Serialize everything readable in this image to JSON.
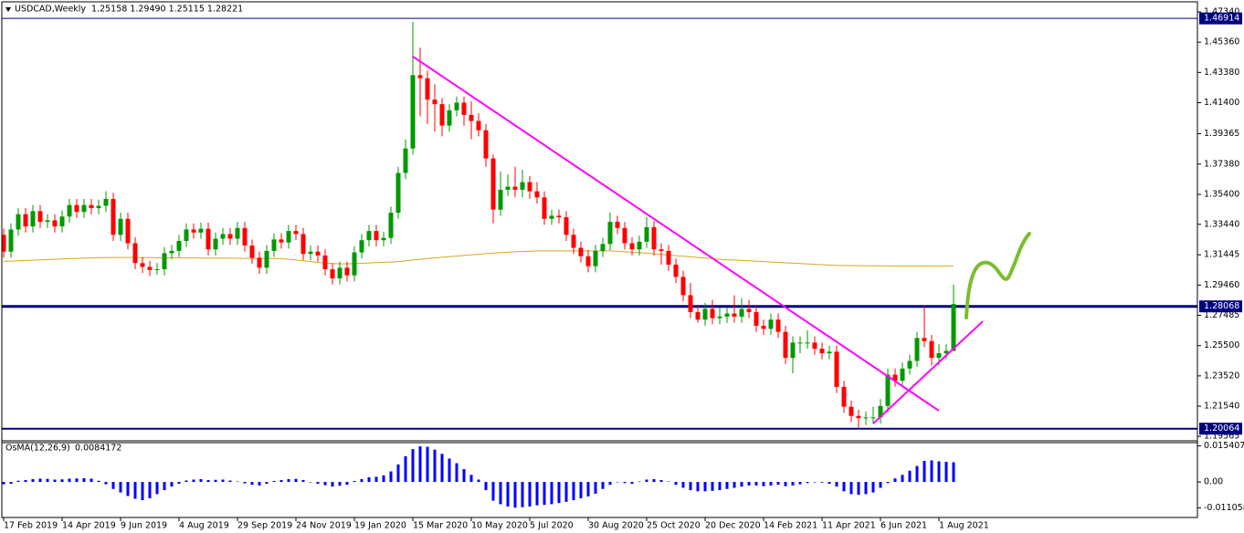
{
  "chart_data": {
    "type": "candlestick",
    "title": "USDCAD,Weekly",
    "ohlc_text": "1.25158 1.29490 1.25115 1.28221",
    "categories": [
      "17 Feb 2019",
      null,
      null,
      null,
      null,
      null,
      null,
      null,
      "14 Apr 2019",
      null,
      null,
      null,
      null,
      null,
      null,
      null,
      "9 Jun 2019",
      null,
      null,
      null,
      null,
      null,
      null,
      null,
      "4 Aug 2019",
      null,
      null,
      null,
      null,
      null,
      null,
      null,
      "29 Sep 2019",
      null,
      null,
      null,
      null,
      null,
      null,
      null,
      "24 Nov 2019",
      null,
      null,
      null,
      null,
      null,
      null,
      null,
      "19 Jan 2020",
      null,
      null,
      null,
      null,
      null,
      null,
      null,
      "15 Mar 2020",
      null,
      null,
      null,
      null,
      null,
      null,
      null,
      "10 May 2020",
      null,
      null,
      null,
      null,
      null,
      null,
      null,
      "5 Jul 2020",
      null,
      null,
      null,
      null,
      null,
      null,
      null,
      "30 Aug 2020",
      null,
      null,
      null,
      null,
      null,
      null,
      null,
      "25 Oct 2020",
      null,
      null,
      null,
      null,
      null,
      null,
      null,
      "20 Dec 2020",
      null,
      null,
      null,
      null,
      null,
      null,
      null,
      "14 Feb 2021",
      null,
      null,
      null,
      null,
      null,
      null,
      null,
      "11 Apr 2021",
      null,
      null,
      null,
      null,
      null,
      null,
      null,
      "6 Jun 2021",
      null,
      null,
      null,
      null,
      null,
      null,
      null,
      "1 Aug 2021",
      null,
      null
    ],
    "open": [
      1.3275,
      1.3165,
      1.331,
      1.341,
      1.333,
      1.343,
      1.336,
      1.337,
      1.333,
      1.3395,
      1.347,
      1.3425,
      1.347,
      1.345,
      1.3465,
      1.351,
      1.3275,
      1.338,
      1.322,
      1.309,
      1.3065,
      1.3045,
      1.305,
      1.3155,
      1.317,
      1.3235,
      1.331,
      1.329,
      1.3315,
      1.318,
      1.325,
      1.328,
      1.325,
      1.332,
      1.3205,
      1.3125,
      1.306,
      1.317,
      1.3245,
      1.3225,
      1.33,
      1.328,
      1.315,
      1.3165,
      1.314,
      1.305,
      1.299,
      1.306,
      1.301,
      1.316,
      1.324,
      1.33,
      1.324,
      1.3255,
      1.342,
      1.368,
      1.384,
      1.432,
      1.43,
      1.416,
      1.413,
      1.399,
      1.409,
      1.414,
      1.406,
      1.402,
      1.396,
      1.3775,
      1.344,
      1.357,
      1.359,
      1.357,
      1.362,
      1.356,
      1.352,
      1.338,
      1.34,
      1.339,
      1.3275,
      1.319,
      1.3135,
      1.307,
      1.317,
      1.3215,
      1.336,
      1.332,
      1.322,
      1.318,
      1.323,
      1.3325,
      1.318,
      1.317,
      1.308,
      1.3,
      1.288,
      1.277,
      1.272,
      1.279,
      1.273,
      1.274,
      1.276,
      1.274,
      1.279,
      1.277,
      1.268,
      1.266,
      1.272,
      1.264,
      1.247,
      1.257,
      1.257,
      1.257,
      1.253,
      1.25,
      1.251,
      1.228,
      1.215,
      1.209,
      1.2075,
      1.208,
      1.208,
      1.2155,
      1.236,
      1.232,
      1.24,
      1.245,
      1.26,
      1.258,
      1.247,
      1.25,
      1.25158
    ],
    "high": [
      1.3315,
      1.335,
      1.345,
      1.345,
      1.347,
      1.347,
      1.341,
      1.341,
      1.3435,
      1.351,
      1.351,
      1.351,
      1.351,
      1.3505,
      1.356,
      1.355,
      1.342,
      1.342,
      1.326,
      1.313,
      1.3105,
      1.309,
      1.3195,
      1.321,
      1.3275,
      1.335,
      1.335,
      1.3355,
      1.3355,
      1.329,
      1.332,
      1.332,
      1.336,
      1.336,
      1.3245,
      1.3165,
      1.321,
      1.3285,
      1.3285,
      1.334,
      1.334,
      1.332,
      1.3205,
      1.3205,
      1.318,
      1.309,
      1.31,
      1.31,
      1.32,
      1.328,
      1.334,
      1.334,
      1.3295,
      1.346,
      1.372,
      1.39,
      1.4668,
      1.45,
      1.435,
      1.426,
      1.417,
      1.413,
      1.418,
      1.418,
      1.415,
      1.407,
      1.4,
      1.38,
      1.369,
      1.367,
      1.372,
      1.37,
      1.366,
      1.362,
      1.356,
      1.344,
      1.344,
      1.343,
      1.3315,
      1.323,
      1.3175,
      1.321,
      1.3255,
      1.342,
      1.34,
      1.336,
      1.326,
      1.327,
      1.339,
      1.3365,
      1.322,
      1.321,
      1.312,
      1.304,
      1.296,
      1.281,
      1.283,
      1.285,
      1.28,
      1.28,
      1.288,
      1.286,
      1.285,
      1.281,
      1.272,
      1.276,
      1.276,
      1.268,
      1.261,
      1.261,
      1.265,
      1.261,
      1.257,
      1.255,
      1.255,
      1.232,
      1.219,
      1.213,
      1.212,
      1.215,
      1.22,
      1.24,
      1.24,
      1.244,
      1.249,
      1.264,
      1.281,
      1.262,
      1.256,
      1.256,
      1.2949
    ],
    "low": [
      1.3125,
      1.3125,
      1.327,
      1.329,
      1.329,
      1.332,
      1.332,
      1.329,
      1.329,
      1.3355,
      1.3385,
      1.3385,
      1.341,
      1.341,
      1.3425,
      1.3235,
      1.3235,
      1.318,
      1.305,
      1.3025,
      1.3005,
      1.3015,
      1.301,
      1.3115,
      1.313,
      1.3195,
      1.325,
      1.325,
      1.314,
      1.314,
      1.321,
      1.321,
      1.321,
      1.3165,
      1.3085,
      1.302,
      1.302,
      1.313,
      1.3185,
      1.3185,
      1.324,
      1.311,
      1.311,
      1.31,
      1.301,
      1.295,
      1.295,
      1.297,
      1.297,
      1.312,
      1.32,
      1.32,
      1.32,
      1.3215,
      1.338,
      1.364,
      1.38,
      1.405,
      1.4,
      1.395,
      1.392,
      1.395,
      1.405,
      1.399,
      1.39,
      1.392,
      1.372,
      1.335,
      1.34,
      1.353,
      1.352,
      1.352,
      1.351,
      1.348,
      1.334,
      1.334,
      1.335,
      1.3235,
      1.315,
      1.3095,
      1.303,
      1.303,
      1.313,
      1.3175,
      1.328,
      1.318,
      1.314,
      1.314,
      1.319,
      1.314,
      1.308,
      1.304,
      1.296,
      1.284,
      1.273,
      1.27,
      1.268,
      1.269,
      1.269,
      1.27,
      1.27,
      1.27,
      1.273,
      1.264,
      1.262,
      1.262,
      1.26,
      1.243,
      1.237,
      1.25,
      1.253,
      1.249,
      1.246,
      1.246,
      1.224,
      1.211,
      1.205,
      1.2006,
      1.203,
      1.204,
      1.204,
      1.2115,
      1.228,
      1.228,
      1.236,
      1.241,
      1.254,
      1.242,
      1.242,
      1.246,
      1.25115
    ],
    "close": [
      1.3165,
      1.331,
      1.341,
      1.333,
      1.343,
      1.336,
      1.337,
      1.333,
      1.3395,
      1.347,
      1.3425,
      1.347,
      1.345,
      1.3465,
      1.351,
      1.3275,
      1.338,
      1.322,
      1.309,
      1.3065,
      1.3045,
      1.305,
      1.3155,
      1.317,
      1.3235,
      1.331,
      1.329,
      1.3315,
      1.318,
      1.325,
      1.328,
      1.325,
      1.332,
      1.3205,
      1.3125,
      1.306,
      1.317,
      1.3245,
      1.3225,
      1.33,
      1.328,
      1.315,
      1.3165,
      1.314,
      1.305,
      1.299,
      1.306,
      1.301,
      1.316,
      1.324,
      1.33,
      1.324,
      1.3255,
      1.342,
      1.368,
      1.384,
      1.432,
      1.43,
      1.416,
      1.413,
      1.399,
      1.409,
      1.414,
      1.406,
      1.402,
      1.396,
      1.3775,
      1.344,
      1.357,
      1.359,
      1.357,
      1.362,
      1.356,
      1.352,
      1.338,
      1.34,
      1.339,
      1.3275,
      1.319,
      1.3135,
      1.307,
      1.317,
      1.3215,
      1.336,
      1.332,
      1.322,
      1.318,
      1.323,
      1.3325,
      1.318,
      1.317,
      1.308,
      1.3,
      1.288,
      1.277,
      1.272,
      1.279,
      1.273,
      1.274,
      1.276,
      1.274,
      1.279,
      1.277,
      1.268,
      1.266,
      1.272,
      1.264,
      1.247,
      1.257,
      1.257,
      1.257,
      1.253,
      1.25,
      1.251,
      1.228,
      1.215,
      1.209,
      1.2075,
      1.208,
      1.208,
      1.2155,
      1.236,
      1.232,
      1.24,
      1.245,
      1.26,
      1.258,
      1.247,
      1.25,
      1.25158,
      1.28221
    ],
    "up_color": "#009900",
    "down_color": "#ff0000",
    "ma": {
      "color": "#daa520",
      "values": [
        1.3101,
        1.3103,
        1.3105,
        1.3107,
        1.3109,
        1.3111,
        1.3113,
        1.3115,
        1.3117,
        1.3119,
        1.3121,
        1.3123,
        1.3124,
        1.3125,
        1.3126,
        1.3127,
        1.3127,
        1.3127,
        1.3126,
        1.3126,
        1.3126,
        1.3125,
        1.3125,
        1.3125,
        1.3124,
        1.3124,
        1.3124,
        1.3123,
        1.3123,
        1.3123,
        1.3122,
        1.3122,
        1.3122,
        1.3121,
        1.3121,
        1.3121,
        1.312,
        1.312,
        1.312,
        1.3115,
        1.311,
        1.3105,
        1.31,
        1.3095,
        1.309,
        1.3087,
        1.3085,
        1.3085,
        1.3087,
        1.3089,
        1.3091,
        1.3093,
        1.3095,
        1.3097,
        1.31,
        1.3105,
        1.311,
        1.3115,
        1.312,
        1.3124,
        1.3128,
        1.3132,
        1.3136,
        1.314,
        1.3144,
        1.3148,
        1.3152,
        1.3155,
        1.3158,
        1.3161,
        1.3164,
        1.3166,
        1.3168,
        1.317,
        1.317,
        1.317,
        1.317,
        1.317,
        1.317,
        1.317,
        1.317,
        1.317,
        1.317,
        1.317,
        1.3167,
        1.3164,
        1.3161,
        1.3158,
        1.3155,
        1.3151,
        1.3147,
        1.3143,
        1.3139,
        1.3135,
        1.3131,
        1.3127,
        1.3123,
        1.3119,
        1.3115,
        1.3112,
        1.311,
        1.3107,
        1.3105,
        1.3102,
        1.31,
        1.3097,
        1.3095,
        1.3092,
        1.309,
        1.3087,
        1.3085,
        1.3082,
        1.308,
        1.3077,
        1.3075,
        1.3074,
        1.3074,
        1.3073,
        1.3073,
        1.3072,
        1.3072,
        1.3072,
        1.3071,
        1.3071,
        1.3071,
        1.3071,
        1.307,
        1.307,
        1.307,
        1.307,
        1.307
      ]
    },
    "ylim": [
      1.1933,
      1.4788
    ],
    "yticks": [
      {
        "value": 1.4734,
        "label": "1.47340"
      },
      {
        "value": 1.4536,
        "label": "1.45360"
      },
      {
        "value": 1.4338,
        "label": "1.43380"
      },
      {
        "value": 1.414,
        "label": "1.41400"
      },
      1.39365,
      {
        "value": 1.3738,
        "label": "1.37380"
      },
      {
        "value": 1.354,
        "label": "1.35400"
      },
      {
        "value": 1.3344,
        "label": "1.33440"
      },
      1.31445,
      {
        "value": 1.2946,
        "label": "1.29460"
      },
      1.27485,
      {
        "value": 1.255,
        "label": "1.25500"
      },
      {
        "value": 1.2352,
        "label": "1.23520"
      },
      {
        "value": 1.2154,
        "label": "1.21540"
      },
      1.19565
    ],
    "levels": [
      {
        "value": 1.46914,
        "color": "#000080",
        "style": "thin"
      },
      {
        "value": 1.28068,
        "color": "#000080",
        "style": "thick"
      },
      {
        "value": 1.20064,
        "color": "#000080",
        "style": "medium"
      }
    ],
    "trendlines": [
      {
        "x": [
          56,
          128
        ],
        "y": [
          1.4442,
          1.2124
        ],
        "color": "#ff00ff"
      },
      {
        "x": [
          119,
          134
        ],
        "y": [
          1.204,
          1.2709
        ],
        "color": "#ff00ff"
      }
    ],
    "osma": {
      "name": "OsMA(12,26,9)",
      "color": "#0000ff",
      "ylim": [
        -0.0148,
        0.0164
      ],
      "yticks": [
        0.0154073,
        {
          "value": 0,
          "label": "0.00"
        },
        -0.011058
      ],
      "values": [
        -0.001,
        -0.0008,
        0.0005,
        0.0008,
        0.0012,
        0.0014,
        0.0013,
        0.001,
        0.0011,
        0.0014,
        0.0015,
        0.0016,
        0.0014,
        0.0005,
        -0.001,
        -0.003,
        -0.0045,
        -0.006,
        -0.0072,
        -0.0078,
        -0.007,
        -0.0052,
        -0.0035,
        -0.002,
        -0.0008,
        0.0006,
        0.001,
        0.0012,
        0.0008,
        0.0009,
        0.001,
        0.0006,
        0.0002,
        -0.0006,
        -0.0012,
        -0.0015,
        -0.0008,
        0.0004,
        0.0008,
        0.0012,
        0.0013,
        0.0008,
        -0.0002,
        -0.0008,
        -0.0014,
        -0.002,
        -0.0016,
        -0.0012,
        0.0004,
        0.0012,
        0.002,
        0.0022,
        0.0028,
        0.0045,
        0.0075,
        0.011,
        0.014,
        0.0152,
        0.015,
        0.0138,
        0.012,
        0.01,
        0.008,
        0.0055,
        0.003,
        0.001,
        -0.0035,
        -0.008,
        -0.0095,
        -0.0105,
        -0.011,
        -0.0108,
        -0.0105,
        -0.01,
        -0.0098,
        -0.0095,
        -0.009,
        -0.0085,
        -0.0078,
        -0.007,
        -0.0062,
        -0.005,
        -0.003,
        -0.0012,
        -0.0002,
        -0.0005,
        -0.0008,
        0.0002,
        0.001,
        0.0012,
        0.0008,
        0.0002,
        -0.0012,
        -0.0025,
        -0.0035,
        -0.004,
        -0.004,
        -0.0038,
        -0.0035,
        -0.003,
        -0.0025,
        -0.002,
        -0.0015,
        -0.0015,
        -0.0018,
        -0.0015,
        -0.0012,
        -0.0018,
        -0.0015,
        -0.001,
        -0.0005,
        -0.0002,
        -0.0003,
        -0.0008,
        -0.002,
        -0.004,
        -0.0052,
        -0.0055,
        -0.0052,
        -0.0045,
        -0.0025,
        -0.0005,
        0.0015,
        0.003,
        0.0048,
        0.0068,
        0.009,
        0.0092,
        0.0088,
        0.0086,
        0.0084172
      ]
    }
  }
}
